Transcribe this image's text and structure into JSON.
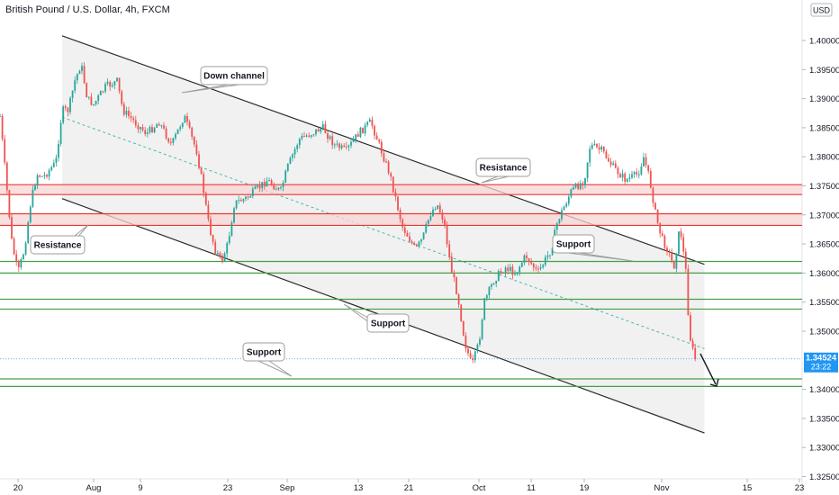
{
  "header": {
    "title": "British Pound / U.S. Dollar, 4h, FXCM",
    "currency": "USD"
  },
  "price_tag": {
    "price": "1.34524",
    "countdown": "23:22",
    "color": "#2196f3"
  },
  "colors": {
    "up": "#26a69a",
    "down": "#ef5350",
    "resistance_line": "#e53935",
    "resistance_fill": "#f8d4d4",
    "support_line": "#43a047",
    "channel_line": "#2b2b2b",
    "channel_fill": "#f0f0f0",
    "midline": "#4db6ac"
  },
  "annotations": {
    "down_channel": "Down channel",
    "resistance_top": "Resistance",
    "resistance_left": "Resistance",
    "support_right": "Support",
    "support_mid": "Support",
    "support_left": "Support"
  },
  "chart_data": {
    "type": "candlestick",
    "symbol": "GBP/USD",
    "timeframe": "4h",
    "y_ticks": [
      "1.40000",
      "1.39500",
      "1.39000",
      "1.38500",
      "1.38000",
      "1.37500",
      "1.37000",
      "1.36500",
      "1.36000",
      "1.35500",
      "1.35000",
      "1.34000",
      "1.33500",
      "1.33000",
      "1.32500"
    ],
    "x_ticks": [
      "20",
      "Aug",
      "9",
      "23",
      "Sep",
      "13",
      "21",
      "Oct",
      "11",
      "19",
      "Nov",
      "15",
      "23"
    ],
    "ylim": [
      1.3225,
      1.4045
    ],
    "resistance_zones": [
      [
        1.3735,
        1.3752
      ],
      [
        1.3682,
        1.3702
      ]
    ],
    "support_lines": [
      1.362,
      1.36,
      1.3555,
      1.3538,
      1.3418,
      1.3405
    ],
    "channel": {
      "upper": [
        [
          "Jul 27",
          1.4008
        ],
        [
          "Nov 8",
          1.3615
        ]
      ],
      "lower": [
        [
          "Jul 27",
          1.3728
        ],
        [
          "Nov 8",
          1.3325
        ]
      ]
    },
    "last_price": 1.34524,
    "path": [
      [
        "Jul 14",
        1.387
      ],
      [
        "Jul 16",
        1.376
      ],
      [
        "Jul 18",
        1.365
      ],
      [
        "Jul 20",
        1.36
      ],
      [
        "Jul 21",
        1.364
      ],
      [
        "Jul 22",
        1.372
      ],
      [
        "Jul 23",
        1.377
      ],
      [
        "Jul 24",
        1.3765
      ],
      [
        "Jul 26",
        1.379
      ],
      [
        "Jul 27",
        1.388
      ],
      [
        "Jul 28",
        1.388
      ],
      [
        "Jul 29",
        1.393
      ],
      [
        "Jul 30",
        1.396
      ],
      [
        "Jul 31",
        1.39
      ],
      [
        "Aug 1",
        1.389
      ],
      [
        "Aug 3",
        1.392
      ],
      [
        "Aug 5",
        1.393
      ],
      [
        "Aug 6",
        1.388
      ],
      [
        "Aug 8",
        1.386
      ],
      [
        "Aug 10",
        1.384
      ],
      [
        "Aug 12",
        1.386
      ],
      [
        "Aug 14",
        1.382
      ],
      [
        "Aug 16",
        1.387
      ],
      [
        "Aug 18",
        1.381
      ],
      [
        "Aug 19",
        1.375
      ],
      [
        "Aug 20",
        1.368
      ],
      [
        "Aug 21",
        1.364
      ],
      [
        "Aug 22",
        1.362
      ],
      [
        "Aug 23",
        1.365
      ],
      [
        "Aug 24",
        1.372
      ],
      [
        "Aug 26",
        1.373
      ],
      [
        "Aug 27",
        1.374
      ],
      [
        "Aug 29",
        1.376
      ],
      [
        "Aug 31",
        1.374
      ],
      [
        "Sep 1",
        1.378
      ],
      [
        "Sep 3",
        1.383
      ],
      [
        "Sep 5",
        1.384
      ],
      [
        "Sep 7",
        1.385
      ],
      [
        "Sep 9",
        1.382
      ],
      [
        "Sep 11",
        1.381
      ],
      [
        "Sep 13",
        1.384
      ],
      [
        "Sep 15",
        1.386
      ],
      [
        "Sep 16",
        1.383
      ],
      [
        "Sep 18",
        1.377
      ],
      [
        "Sep 20",
        1.368
      ],
      [
        "Sep 22",
        1.364
      ],
      [
        "Sep 23",
        1.366
      ],
      [
        "Sep 24",
        1.37
      ],
      [
        "Sep 25",
        1.372
      ],
      [
        "Sep 26",
        1.369
      ],
      [
        "Sep 27",
        1.361
      ],
      [
        "Sep 28",
        1.356
      ],
      [
        "Sep 29",
        1.348
      ],
      [
        "Sep 30",
        1.344
      ],
      [
        "Oct 1",
        1.348
      ],
      [
        "Oct 2",
        1.355
      ],
      [
        "Oct 4",
        1.359
      ],
      [
        "Oct 6",
        1.361
      ],
      [
        "Oct 8",
        1.36
      ],
      [
        "Oct 10",
        1.363
      ],
      [
        "Oct 12",
        1.36
      ],
      [
        "Oct 14",
        1.364
      ],
      [
        "Oct 15",
        1.369
      ],
      [
        "Oct 17",
        1.374
      ],
      [
        "Oct 19",
        1.376
      ],
      [
        "Oct 20",
        1.382
      ],
      [
        "Oct 22",
        1.381
      ],
      [
        "Oct 24",
        1.378
      ],
      [
        "Oct 26",
        1.376
      ],
      [
        "Oct 28",
        1.377
      ],
      [
        "Oct 29",
        1.38
      ],
      [
        "Oct 30",
        1.376
      ],
      [
        "Oct 31",
        1.37
      ],
      [
        "Nov 1",
        1.366
      ],
      [
        "Nov 2",
        1.364
      ],
      [
        "Nov 3",
        1.361
      ],
      [
        "Nov 4",
        1.368
      ],
      [
        "Nov 5",
        1.36
      ],
      [
        "Nov 5b",
        1.35
      ],
      [
        "Nov 6",
        1.347
      ],
      [
        "Nov 6b",
        1.3452
      ]
    ]
  }
}
